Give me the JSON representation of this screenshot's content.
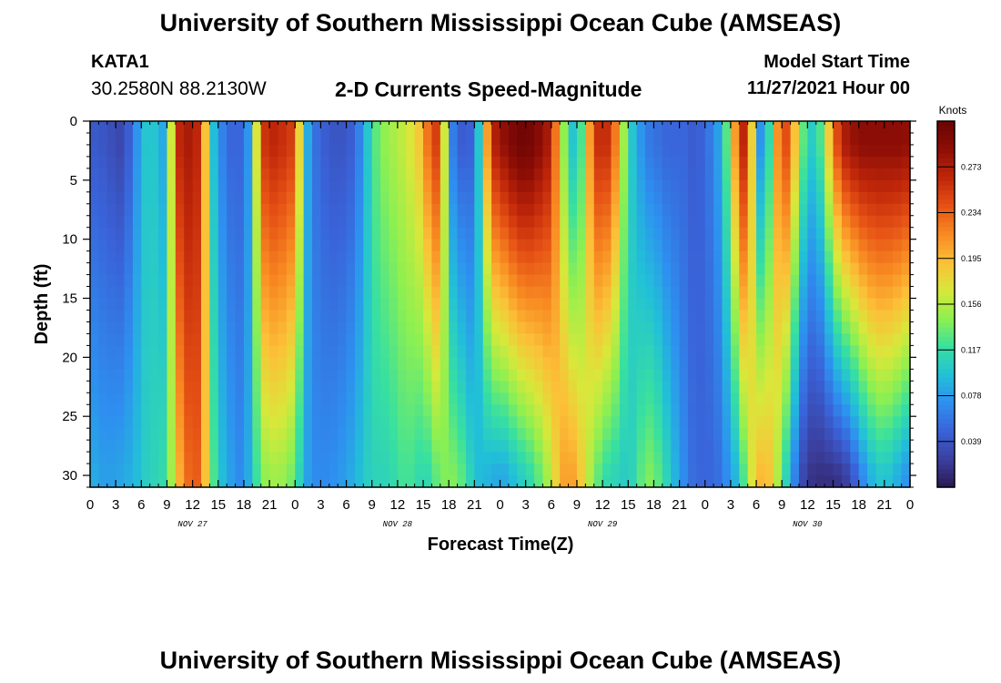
{
  "header": {
    "title": "University of Southern Mississippi Ocean Cube (AMSEAS)",
    "station_id": "KATA1",
    "station_coords": "30.2580N  88.2130W",
    "plot_title": "2-D Currents Speed-Magnitude",
    "model_start_label": "Model Start Time",
    "model_start_value": "11/27/2021 Hour 00"
  },
  "footer": {
    "title": "University of Southern Mississippi Ocean Cube (AMSEAS)"
  },
  "colors": {
    "background": "#ffffff",
    "colormap": [
      "#2a1850",
      "#3b3f9e",
      "#3a62d8",
      "#2e8ff0",
      "#22c0d8",
      "#38e0a0",
      "#8ef050",
      "#d8e83a",
      "#fcc038",
      "#f88a22",
      "#e65215",
      "#c0270a",
      "#8e0e06",
      "#6a0404"
    ]
  },
  "chart_data": {
    "type": "heatmap",
    "title": "2-D Currents Speed-Magnitude",
    "xlabel": "Forecast Time(Z)",
    "ylabel": "Depth (ft)",
    "x_range_hours": [
      0,
      96
    ],
    "x_tick_labels": [
      "0",
      "3",
      "6",
      "9",
      "12",
      "15",
      "18",
      "21",
      "0",
      "3",
      "6",
      "9",
      "12",
      "15",
      "18",
      "21",
      "0",
      "3",
      "6",
      "9",
      "12",
      "15",
      "18",
      "21",
      "0",
      "3",
      "6",
      "9",
      "12",
      "15",
      "18",
      "21",
      "0"
    ],
    "date_labels": [
      {
        "label": "NOV 27",
        "hour": 12
      },
      {
        "label": "NOV 28",
        "hour": 36
      },
      {
        "label": "NOV 29",
        "hour": 60
      },
      {
        "label": "NOV 30",
        "hour": 84
      }
    ],
    "y_range_ft": [
      0,
      31
    ],
    "y_ticks": [
      0,
      5,
      10,
      15,
      20,
      25,
      30
    ],
    "colorbar": {
      "units": "Knots",
      "min": 0,
      "max": 0.312,
      "tick_labels": [
        "0.273",
        "0.234",
        "0.195",
        "0.156",
        "0.117",
        "0.078",
        "0.039"
      ],
      "tick_values": [
        0.273,
        0.234,
        0.195,
        0.156,
        0.117,
        0.078,
        0.039
      ]
    },
    "shallow_profile": {
      "depth_ft": 2,
      "hours": [
        0,
        1,
        2,
        3,
        4,
        5,
        6,
        7,
        8,
        9,
        10,
        11,
        12,
        13,
        14,
        15,
        16,
        17,
        18,
        19,
        20,
        21,
        22,
        23,
        24,
        25,
        26,
        27,
        28,
        29,
        30,
        31,
        32,
        33,
        34,
        35,
        36,
        37,
        38,
        39,
        40,
        41,
        42,
        43,
        44,
        45,
        46,
        47,
        48,
        49,
        50,
        51,
        52,
        53,
        54,
        55,
        56,
        57,
        58,
        59,
        60,
        61,
        62,
        63,
        64,
        65,
        66,
        67,
        68,
        69,
        70,
        71,
        72,
        73,
        74,
        75,
        76,
        77,
        78,
        79,
        80,
        81,
        82,
        83,
        84,
        85,
        86,
        87,
        88,
        89,
        90,
        91,
        92,
        93,
        94,
        95,
        96
      ],
      "speed_kt": [
        0.045,
        0.04,
        0.04,
        0.03,
        0.03,
        0.06,
        0.09,
        0.11,
        0.09,
        0.08,
        0.25,
        0.28,
        0.27,
        0.26,
        0.12,
        0.07,
        0.06,
        0.04,
        0.06,
        0.09,
        0.25,
        0.265,
        0.265,
        0.255,
        0.25,
        0.11,
        0.06,
        0.05,
        0.04,
        0.04,
        0.04,
        0.05,
        0.08,
        0.12,
        0.14,
        0.15,
        0.155,
        0.165,
        0.175,
        0.2,
        0.25,
        0.25,
        0.08,
        0.045,
        0.045,
        0.05,
        0.15,
        0.265,
        0.28,
        0.295,
        0.305,
        0.31,
        0.3,
        0.285,
        0.27,
        0.18,
        0.11,
        0.09,
        0.16,
        0.255,
        0.265,
        0.255,
        0.19,
        0.11,
        0.09,
        0.06,
        0.06,
        0.05,
        0.05,
        0.05,
        0.05,
        0.04,
        0.055,
        0.065,
        0.095,
        0.16,
        0.255,
        0.275,
        0.09,
        0.06,
        0.17,
        0.255,
        0.23,
        0.15,
        0.11,
        0.1,
        0.15,
        0.22,
        0.27,
        0.28,
        0.29,
        0.29,
        0.29,
        0.29,
        0.29,
        0.29,
        0.285
      ]
    },
    "deep_profile": {
      "depth_ft": 30,
      "hours": [
        0,
        1,
        2,
        3,
        4,
        5,
        6,
        7,
        8,
        9,
        10,
        11,
        12,
        13,
        14,
        15,
        16,
        17,
        18,
        19,
        20,
        21,
        22,
        23,
        24,
        25,
        26,
        27,
        28,
        29,
        30,
        31,
        32,
        33,
        34,
        35,
        36,
        37,
        38,
        39,
        40,
        41,
        42,
        43,
        44,
        45,
        46,
        47,
        48,
        49,
        50,
        51,
        52,
        53,
        54,
        55,
        56,
        57,
        58,
        59,
        60,
        61,
        62,
        63,
        64,
        65,
        66,
        67,
        68,
        69,
        70,
        71,
        72,
        73,
        74,
        75,
        76,
        77,
        78,
        79,
        80,
        81,
        82,
        83,
        84,
        85,
        86,
        87,
        88,
        89,
        90,
        91,
        92,
        93,
        94,
        95,
        96
      ],
      "speed_kt": [
        0.09,
        0.08,
        0.08,
        0.08,
        0.085,
        0.09,
        0.1,
        0.11,
        0.11,
        0.12,
        0.18,
        0.22,
        0.24,
        0.23,
        0.15,
        0.1,
        0.09,
        0.07,
        0.07,
        0.1,
        0.14,
        0.15,
        0.15,
        0.145,
        0.13,
        0.09,
        0.07,
        0.07,
        0.07,
        0.075,
        0.08,
        0.09,
        0.1,
        0.11,
        0.11,
        0.11,
        0.12,
        0.125,
        0.12,
        0.11,
        0.12,
        0.14,
        0.14,
        0.14,
        0.12,
        0.1,
        0.09,
        0.09,
        0.08,
        0.09,
        0.1,
        0.11,
        0.12,
        0.14,
        0.16,
        0.2,
        0.21,
        0.2,
        0.17,
        0.14,
        0.12,
        0.11,
        0.11,
        0.1,
        0.12,
        0.14,
        0.14,
        0.12,
        0.1,
        0.08,
        0.06,
        0.05,
        0.05,
        0.05,
        0.06,
        0.08,
        0.1,
        0.15,
        0.19,
        0.2,
        0.18,
        0.13,
        0.09,
        0.04,
        0.02,
        0.015,
        0.015,
        0.015,
        0.02,
        0.03,
        0.06,
        0.08,
        0.1,
        0.1,
        0.095,
        0.08,
        0.07
      ]
    }
  }
}
